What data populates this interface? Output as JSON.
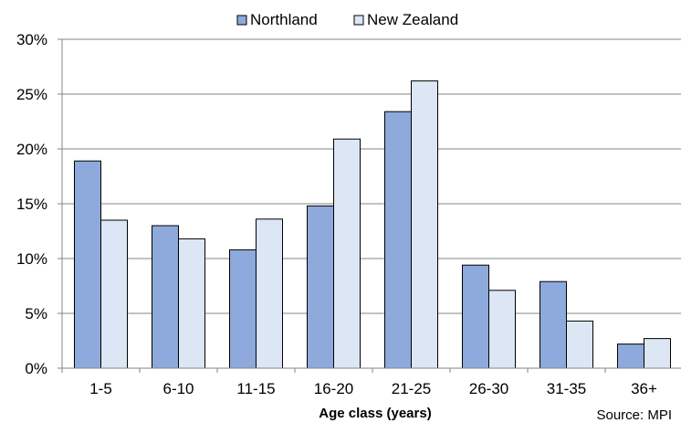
{
  "chart_data": {
    "type": "bar",
    "categories": [
      "1-5",
      "6-10",
      "11-15",
      "16-20",
      "21-25",
      "26-30",
      "31-35",
      "36+"
    ],
    "series": [
      {
        "name": "Northland",
        "color": "#8EA9DB",
        "values": [
          18.9,
          13.0,
          10.8,
          14.8,
          23.4,
          9.4,
          7.9,
          2.2
        ]
      },
      {
        "name": "New Zealand",
        "color": "#DCE6F5",
        "values": [
          13.5,
          11.8,
          13.6,
          20.9,
          26.2,
          7.1,
          4.3,
          2.7
        ]
      }
    ],
    "xlabel": "Age class (years)",
    "ylabel": "",
    "ylim": [
      0,
      30
    ],
    "yticks": [
      "0%",
      "5%",
      "10%",
      "15%",
      "20%",
      "25%",
      "30%"
    ],
    "grid": true,
    "legend_position": "top",
    "source": "Source: MPI"
  }
}
